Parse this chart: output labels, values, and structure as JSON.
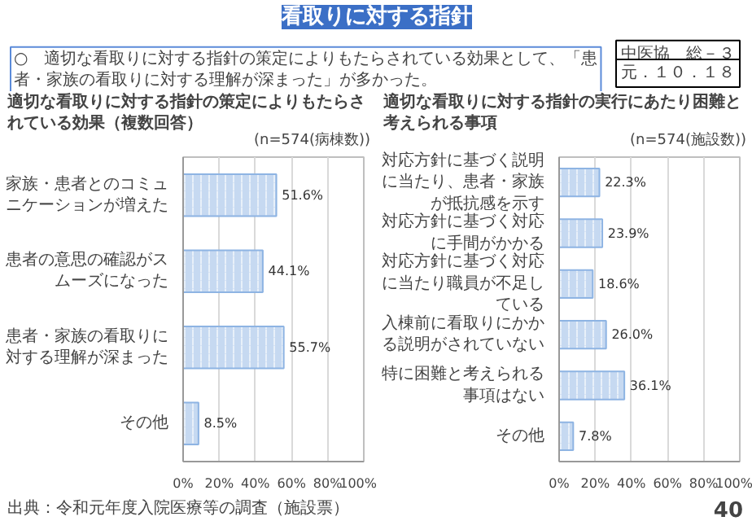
{
  "chart_data": [
    {
      "type": "other",
      "title": "看取りに対する指針",
      "annotations": [
        "中医協　総－３",
        "元．１０．１８",
        "○　適切な看取りに対する指針の策定によりもたらされている効果として、「患者・家族の看取りに対する理解が深まった」が多かった。"
      ]
    },
    {
      "type": "bar",
      "orientation": "horizontal",
      "title": "適切な看取りに対する指針の策定によりもたらされている効果（複数回答）",
      "subtitle": "(n=574(病棟数))",
      "categories": [
        "家族・患者とのコミュニケーションが増えた",
        "患者の意思の確認がスムーズになった",
        "患者・家族の看取りに対する理解が深まった",
        "その他"
      ],
      "values": [
        51.6,
        44.1,
        55.7,
        8.5
      ],
      "value_labels": [
        "51.6%",
        "44.1%",
        "55.7%",
        "8.5%"
      ],
      "color": "#c6d9f1",
      "xlim": [
        0,
        100
      ],
      "xticks": [
        {
          "value": 0,
          "label": "0%"
        },
        {
          "value": 20,
          "label": "20%"
        },
        {
          "value": 40,
          "label": "40%"
        },
        {
          "value": 60,
          "label": "60%"
        },
        {
          "value": 80,
          "label": "80%"
        },
        {
          "value": 100,
          "label": "100%"
        }
      ],
      "grid": "x",
      "annotations": [
        "出典：令和元年度入院医療等の調査（施設票）"
      ]
    },
    {
      "type": "bar",
      "orientation": "horizontal",
      "title": "適切な看取りに対する指針の実行にあたり困難と考えられる事項",
      "subtitle": "(n=574(施設数))",
      "categories": [
        "対応方針に基づく説明に当たり、患者・家族が抵抗感を示す",
        "対応方針に基づく対応に手間がかかる",
        "対応方針に基づく対応に当たり職員が不足している",
        "入棟前に看取りにかかる説明がされていない",
        "特に困難と考えられる事項はない",
        "その他"
      ],
      "values": [
        22.3,
        23.9,
        18.6,
        26.0,
        36.1,
        7.8
      ],
      "value_labels": [
        "22.3%",
        "23.9%",
        "18.6%",
        "26.0%",
        "36.1%",
        "7.8%"
      ],
      "color": "#c6d9f1",
      "xlim": [
        0,
        100
      ],
      "xticks": [
        {
          "value": 0,
          "label": "0%"
        },
        {
          "value": 20,
          "label": "20%"
        },
        {
          "value": 40,
          "label": "40%"
        },
        {
          "value": 60,
          "label": "60%"
        },
        {
          "value": 80,
          "label": "80%"
        },
        {
          "value": 100,
          "label": "100%"
        }
      ],
      "grid": "x",
      "annotations": [
        "40"
      ]
    }
  ]
}
